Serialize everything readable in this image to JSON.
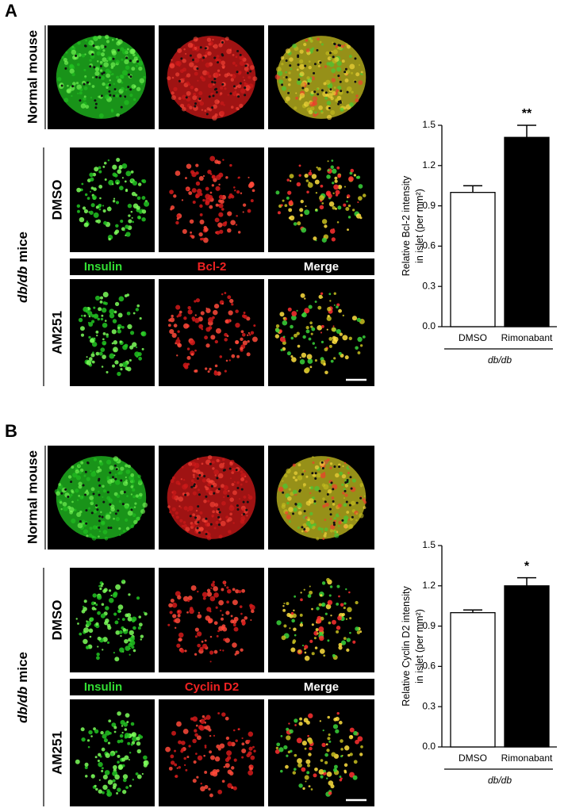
{
  "panels": [
    {
      "label": "A",
      "normal": "Normal mouse",
      "group_italic": "db/db",
      "group": "mice",
      "treatments": [
        "DMSO",
        "AM251"
      ],
      "channels": [
        "Insulin",
        "Bcl-2",
        "Merge"
      ]
    },
    {
      "label": "B",
      "normal": "Normal mouse",
      "group_italic": "db/db",
      "group": "mice",
      "treatments": [
        "DMSO",
        "AM251"
      ],
      "channels": [
        "Insulin",
        "Cyclin D2",
        "Merge"
      ]
    }
  ],
  "chart_data": [
    {
      "type": "bar",
      "ylabel": [
        "Relative Bcl-2 intensity",
        "in islet (per mm²)"
      ],
      "categories": [
        "DMSO",
        "Rimonabant"
      ],
      "values": [
        1.0,
        1.41
      ],
      "errors": [
        0.05,
        0.09
      ],
      "colors": [
        "#ffffff",
        "#000000"
      ],
      "ylim": [
        0,
        1.5
      ],
      "yticks": [
        {
          "value": 0,
          "label": "0.0"
        },
        0.3,
        0.6,
        0.9,
        1.2,
        1.5
      ],
      "group_label": "db/db",
      "annotation": {
        "category": "Rimonabant",
        "text": "**"
      }
    },
    {
      "type": "bar",
      "ylabel": [
        "Relative Cyclin D2 intensity",
        "in islet (per mm²)"
      ],
      "categories": [
        "DMSO",
        "Rimonabant"
      ],
      "values": [
        1.0,
        1.2
      ],
      "errors": [
        0.02,
        0.06
      ],
      "colors": [
        "#ffffff",
        "#000000"
      ],
      "ylim": [
        0,
        1.5
      ],
      "yticks": [
        {
          "value": 0,
          "label": "0.0"
        },
        0.3,
        0.6,
        0.9,
        1.2,
        1.5
      ],
      "group_label": "db/db",
      "annotation": {
        "category": "Rimonabant",
        "text": "*"
      }
    }
  ]
}
